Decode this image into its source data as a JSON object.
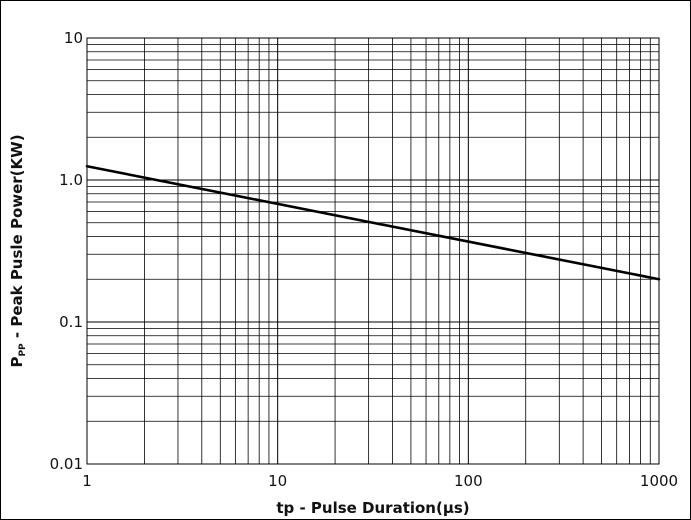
{
  "chart_data": {
    "type": "line",
    "x_scale": "log",
    "y_scale": "log",
    "xlim": [
      1,
      1000
    ],
    "ylim": [
      0.01,
      10
    ],
    "grid": true,
    "x_ticks": [
      {
        "value": 1,
        "label": "1"
      },
      {
        "value": 10,
        "label": "10"
      },
      {
        "value": 100,
        "label": "100"
      },
      {
        "value": 1000,
        "label": "1000"
      }
    ],
    "y_ticks": [
      {
        "value": 10,
        "label": "10"
      },
      {
        "value": 1,
        "label": "1.0"
      },
      {
        "value": 0.1,
        "label": "0.1"
      },
      {
        "value": 0.01,
        "label": "0.01"
      }
    ],
    "xlabel": "tp - Pulse Duration(μs)",
    "ylabel": {
      "main": "P",
      "sub": "PP",
      "rest": " - Peak Pusle Power(KW)"
    },
    "series": [
      {
        "x": [
          1,
          1000
        ],
        "y": [
          1.25,
          0.2
        ],
        "color": "#000000"
      }
    ]
  }
}
